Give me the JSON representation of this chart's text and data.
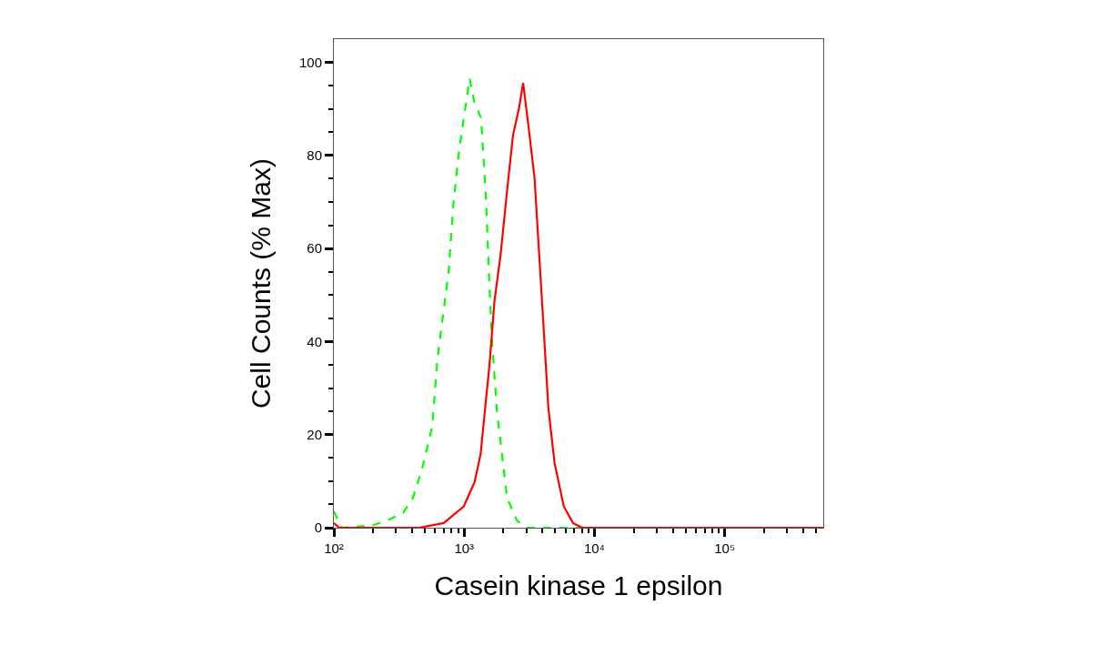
{
  "chart_data": {
    "type": "line",
    "xlabel": "Casein kinase 1 epsilon",
    "ylabel": "Cell Counts (% Max)",
    "log": "x",
    "xlim": [
      100,
      570000
    ],
    "ylim": [
      0,
      105
    ],
    "xticks": [
      {
        "value": 100,
        "label": "10²"
      },
      {
        "value": 200,
        "label": null
      },
      {
        "value": 300,
        "label": null
      },
      {
        "value": 400,
        "label": null
      },
      {
        "value": 500,
        "label": null
      },
      {
        "value": 600,
        "label": null
      },
      {
        "value": 700,
        "label": null
      },
      {
        "value": 800,
        "label": null
      },
      {
        "value": 900,
        "label": null
      },
      {
        "value": 1000,
        "label": "10³"
      },
      {
        "value": 2000,
        "label": null
      },
      {
        "value": 3000,
        "label": null
      },
      {
        "value": 4000,
        "label": null
      },
      {
        "value": 5000,
        "label": null
      },
      {
        "value": 6000,
        "label": null
      },
      {
        "value": 7000,
        "label": null
      },
      {
        "value": 8000,
        "label": null
      },
      {
        "value": 9000,
        "label": null
      },
      {
        "value": 10000,
        "label": "10⁴"
      },
      {
        "value": 20000,
        "label": null
      },
      {
        "value": 30000,
        "label": null
      },
      {
        "value": 40000,
        "label": null
      },
      {
        "value": 50000,
        "label": null
      },
      {
        "value": 60000,
        "label": null
      },
      {
        "value": 70000,
        "label": null
      },
      {
        "value": 80000,
        "label": null
      },
      {
        "value": 90000,
        "label": null
      },
      {
        "value": 100000,
        "label": "10⁵"
      },
      {
        "value": 200000,
        "label": null
      },
      {
        "value": 300000,
        "label": null
      },
      {
        "value": 400000,
        "label": null
      },
      {
        "value": 500000,
        "label": null
      }
    ],
    "yticks": [
      0,
      {
        "value": 5,
        "label": null
      },
      {
        "value": 10,
        "label": null
      },
      {
        "value": 15,
        "label": null
      },
      20,
      {
        "value": 25,
        "label": null
      },
      {
        "value": 30,
        "label": null
      },
      {
        "value": 35,
        "label": null
      },
      40,
      {
        "value": 45,
        "label": null
      },
      {
        "value": 50,
        "label": null
      },
      {
        "value": 55,
        "label": null
      },
      60,
      {
        "value": 65,
        "label": null
      },
      {
        "value": 70,
        "label": null
      },
      {
        "value": 75,
        "label": null
      },
      80,
      {
        "value": 85,
        "label": null
      },
      {
        "value": 90,
        "label": null
      },
      {
        "value": 95,
        "label": null
      },
      100
    ],
    "series": [
      {
        "color": "#00ff00",
        "line_style": "dashed",
        "x": [
          100,
          115,
          197,
          255,
          340,
          404,
          476,
          569,
          621,
          676,
          760,
          824,
          902,
          984,
          1102,
          1194,
          1349,
          1472,
          1557,
          1647,
          1786,
          1967,
          2133,
          2547,
          3020,
          570000
        ],
        "values": [
          3.5,
          0,
          0.5,
          1.5,
          3.2,
          6.4,
          12.7,
          21.8,
          35.7,
          44,
          55,
          69,
          79.7,
          87.3,
          96.5,
          91.6,
          88,
          70.6,
          53,
          39,
          25,
          15,
          6.4,
          1.5,
          0,
          0
        ]
      },
      {
        "color": "#ff0000",
        "line_style": "solid",
        "x": [
          100,
          110,
          451,
          697,
          993,
          1202,
          1337,
          1449,
          1570,
          1710,
          1905,
          2125,
          2371,
          2642,
          2834,
          3112,
          3467,
          3765,
          4087,
          4429,
          4941,
          5810,
          6850,
          8060,
          570000
        ],
        "values": [
          1,
          0,
          0,
          1,
          4.6,
          9.8,
          15.8,
          25.7,
          35.5,
          48.8,
          58.7,
          71.9,
          84.4,
          90.3,
          95.6,
          86.4,
          75.2,
          58.7,
          42.2,
          25.7,
          13.9,
          4.6,
          1,
          0,
          0
        ]
      }
    ]
  }
}
